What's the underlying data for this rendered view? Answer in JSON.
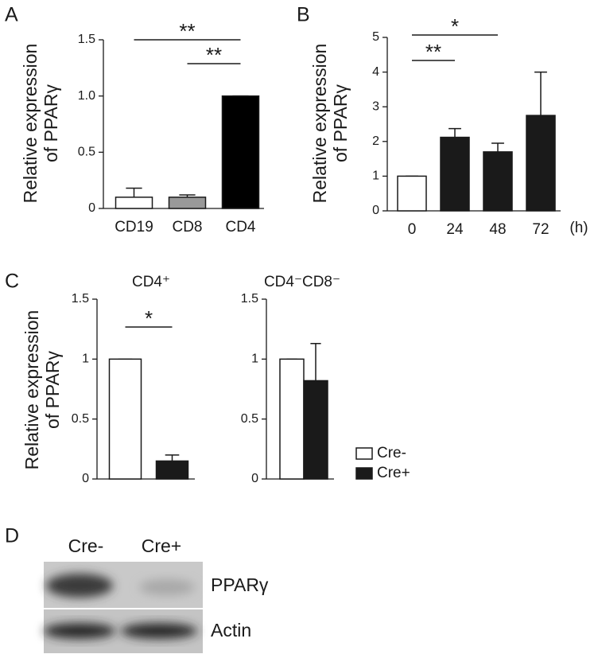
{
  "chart_data": [
    {
      "type": "bar",
      "panel": "A",
      "ylabel": [
        "Relative expression",
        "of PPARγ"
      ],
      "categories": [
        "CD19",
        "CD8",
        "CD4"
      ],
      "values": [
        0.1,
        0.1,
        1.0
      ],
      "errors": [
        0.08,
        0.02,
        0
      ],
      "colors": [
        "#ffffff",
        "#999999",
        "#000000"
      ],
      "ylim": [
        0,
        1.5
      ],
      "yticks": [
        0,
        0.5,
        {
          "value": 1,
          "label": "1.0"
        },
        1.5
      ],
      "annotations": [
        {
          "text": "**",
          "between": [
            "CD19",
            "CD4"
          ]
        },
        {
          "text": "**",
          "between": [
            "CD8",
            "CD4"
          ]
        }
      ]
    },
    {
      "type": "bar",
      "panel": "B",
      "ylabel": [
        "Relative expression",
        "of PPARγ"
      ],
      "xlabel": "(h)",
      "categories": [
        "0",
        "24",
        "48",
        "72"
      ],
      "values": [
        1,
        2.12,
        1.7,
        2.75
      ],
      "errors": [
        0,
        0.25,
        0.25,
        1.25
      ],
      "colors": [
        "#ffffff",
        "#1a1a1a",
        "#1a1a1a",
        "#1a1a1a"
      ],
      "ylim": [
        0,
        5
      ],
      "yticks": [
        0,
        1,
        2,
        3,
        4,
        5
      ],
      "annotations": [
        {
          "text": "*",
          "between": [
            "0",
            "48"
          ]
        },
        {
          "text": "**",
          "between": [
            "0",
            "24"
          ]
        }
      ]
    },
    {
      "type": "bar",
      "panel": "C",
      "title": "CD4⁺",
      "ylabel": [
        "Relative expression",
        "of PPARγ"
      ],
      "series": [
        {
          "color": "#ffffff",
          "values": [
            1
          ],
          "errors": [
            0
          ]
        },
        {
          "color": "#1a1a1a",
          "values": [
            0.15
          ],
          "errors": [
            0.05
          ]
        }
      ],
      "ylim": [
        0,
        1.5
      ],
      "yticks": [
        0,
        0.5,
        1,
        1.5
      ],
      "annotations": [
        {
          "text": "*"
        }
      ]
    },
    {
      "type": "bar",
      "title": "CD4⁻CD8⁻",
      "series": [
        {
          "name": "Cre-",
          "color": "#ffffff",
          "values": [
            1
          ],
          "errors": [
            0
          ]
        },
        {
          "name": "Cre+",
          "color": "#1a1a1a",
          "values": [
            0.82
          ],
          "errors": [
            0.31
          ]
        }
      ],
      "ylim": [
        0,
        1.5
      ],
      "yticks": [
        0,
        0.5,
        1,
        1.5
      ],
      "legend": "right"
    }
  ],
  "blot": {
    "panel": "D",
    "columns": [
      "Cre-",
      "Cre+"
    ],
    "rows": [
      "PPARγ",
      "Actin"
    ]
  }
}
